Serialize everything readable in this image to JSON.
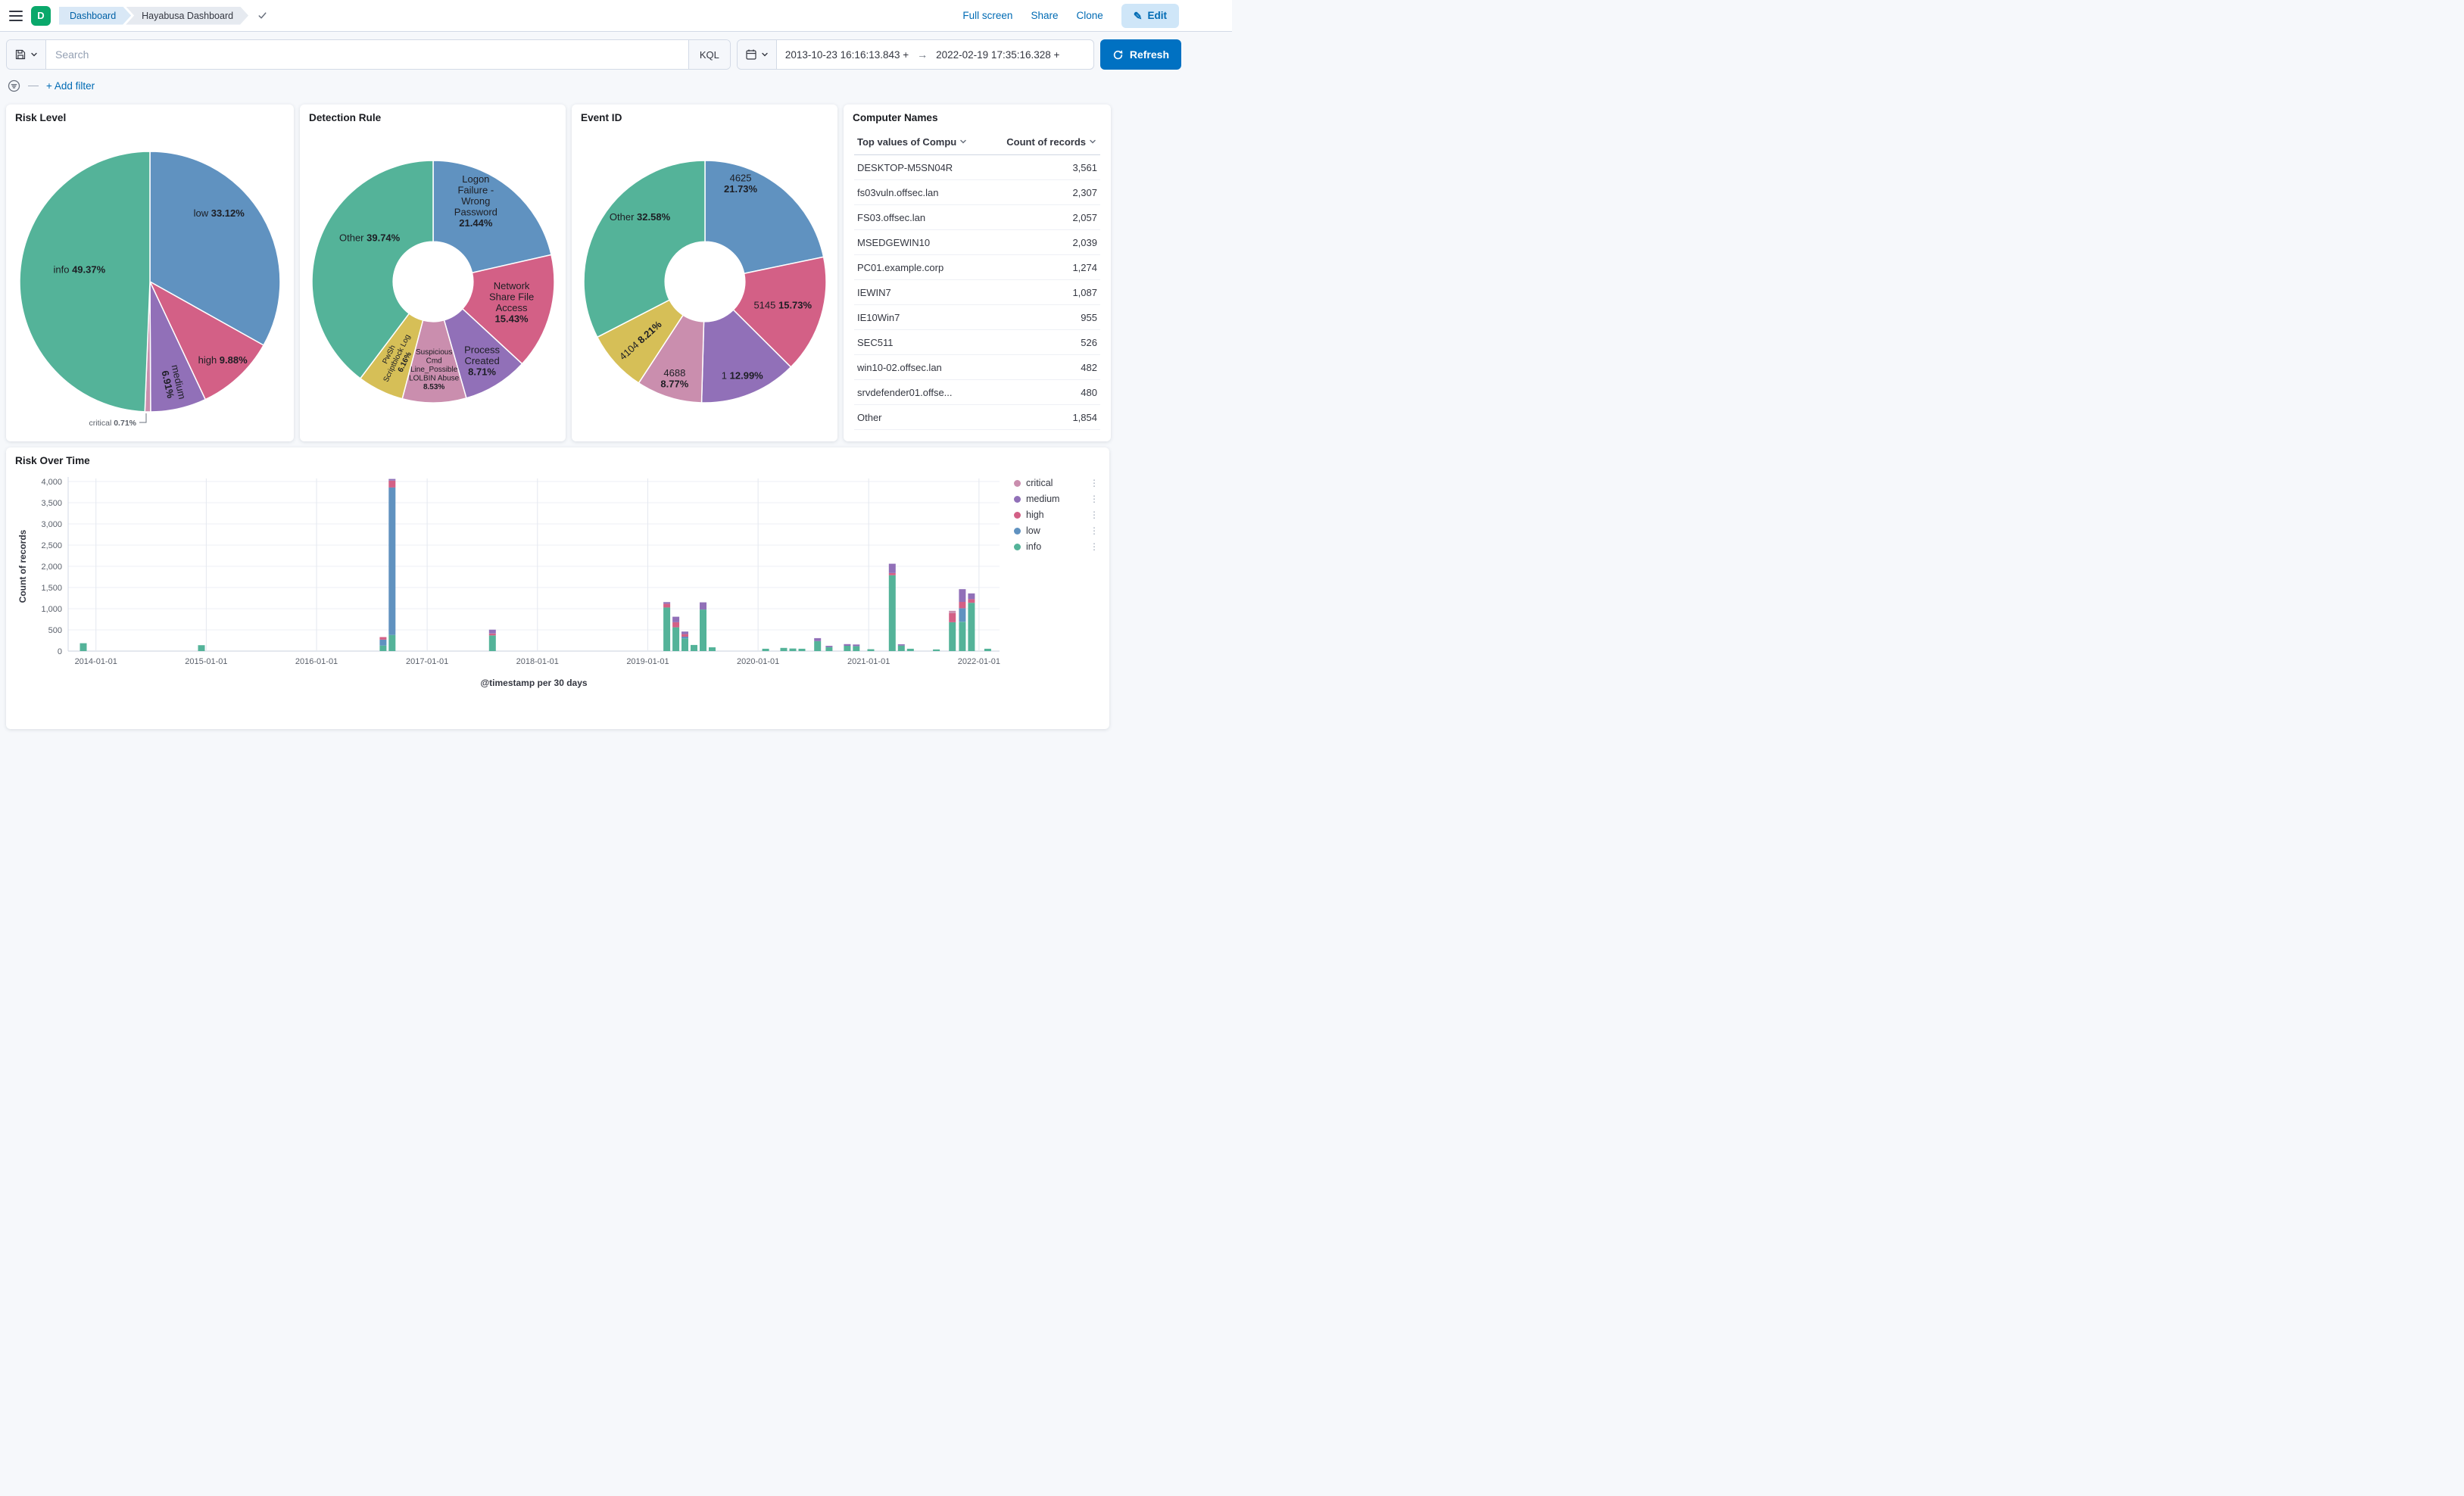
{
  "colors": {
    "info": "#54B399",
    "low": "#6092C0",
    "high": "#D36086",
    "medium": "#9170B8",
    "critical": "#CA8EAE",
    "yellow": "#D6BF57",
    "primary": "#0071C2",
    "link": "#006BB4"
  },
  "header": {
    "logo": "D",
    "breadcrumbs": [
      "Dashboard",
      "Hayabusa Dashboard"
    ],
    "full_screen": "Full screen",
    "share": "Share",
    "clone": "Clone",
    "edit": "Edit"
  },
  "query_bar": {
    "search_placeholder": "Search",
    "kql": "KQL",
    "date_from": "2013-10-23 16:16:13.843 +",
    "date_to": "2022-02-19 17:35:16.328 +",
    "refresh": "Refresh",
    "add_filter": "+ Add filter"
  },
  "chart_data": [
    {
      "type": "pie",
      "title": "Risk Level",
      "donut": false,
      "r": 172,
      "slices": [
        {
          "label": "low",
          "pct": 33.12,
          "color": "low",
          "lr": 0.75,
          "la": 45
        },
        {
          "label": "high",
          "pct": 9.88,
          "color": "high",
          "lr": 0.82
        },
        {
          "label": "medium",
          "pct": 6.91,
          "color": "medium",
          "lr": 0.8,
          "rotate": true,
          "lines": [
            "medium"
          ]
        },
        {
          "label": "critical",
          "pct": 0.71,
          "color": "critical",
          "outside": true
        },
        {
          "label": "info",
          "pct": 49.37,
          "color": "info",
          "lr": 0.55,
          "la": 280
        }
      ]
    },
    {
      "type": "pie",
      "title": "Detection Rule",
      "donut": true,
      "r": 160,
      "slices": [
        {
          "label": "Logon Failure - Wrong Password",
          "pct": 21.44,
          "color": "low",
          "lr": 0.75,
          "la": 28,
          "lines": [
            "Logon",
            "Failure -",
            "Wrong",
            "Password"
          ]
        },
        {
          "label": "Network Share File Access",
          "pct": 15.43,
          "color": "high",
          "lr": 0.67,
          "lines": [
            "Network",
            "Share File",
            "Access"
          ]
        },
        {
          "label": "Process Created",
          "pct": 8.71,
          "color": "medium",
          "lr": 0.77,
          "lines": [
            "Process",
            "Created"
          ]
        },
        {
          "label": "Suspicious CmdLine_Possible LOLBIN Abuse",
          "pct": 8.53,
          "color": "critical",
          "lr": 0.72,
          "small": true,
          "lines": [
            "Suspicious",
            "Cmd",
            "Line_Possible",
            "LOLBIN Abuse"
          ]
        },
        {
          "label": "PwSh Scriptblock Log",
          "pct": 6.16,
          "color": "yellow",
          "lr": 0.7,
          "rotate": true,
          "small": true,
          "lines": [
            "PwSh",
            "Scriptblock Log"
          ]
        },
        {
          "label": "Other",
          "pct": 39.74,
          "color": "info",
          "lr": 0.64,
          "la": 305
        }
      ]
    },
    {
      "type": "pie",
      "title": "Event ID",
      "donut": true,
      "r": 160,
      "slices": [
        {
          "label": "4625",
          "pct": 21.73,
          "color": "low",
          "lr": 0.86,
          "la": 20,
          "lines": [
            "4625"
          ]
        },
        {
          "label": "5145",
          "pct": 15.73,
          "color": "high",
          "lr": 0.67
        },
        {
          "label": "1",
          "pct": 12.99,
          "color": "medium",
          "lr": 0.83
        },
        {
          "label": "4688",
          "pct": 8.77,
          "color": "critical",
          "lr": 0.84,
          "lines": [
            "4688"
          ]
        },
        {
          "label": "4104",
          "pct": 8.21,
          "color": "yellow",
          "lr": 0.72,
          "rotate": true
        },
        {
          "label": "Other",
          "pct": 32.58,
          "color": "info",
          "lr": 0.76,
          "la": 315
        }
      ]
    },
    {
      "type": "table",
      "title": "Computer Names",
      "columns": [
        "Top values of Compu",
        "Count of records"
      ],
      "rows": [
        [
          "DESKTOP-M5SN04R",
          "3,561"
        ],
        [
          "fs03vuln.offsec.lan",
          "2,307"
        ],
        [
          "FS03.offsec.lan",
          "2,057"
        ],
        [
          "MSEDGEWIN10",
          "2,039"
        ],
        [
          "PC01.example.corp",
          "1,274"
        ],
        [
          "IEWIN7",
          "1,087"
        ],
        [
          "IE10Win7",
          "955"
        ],
        [
          "SEC511",
          "526"
        ],
        [
          "win10-02.offsec.lan",
          "482"
        ],
        [
          "srvdefender01.offse...",
          "480"
        ],
        [
          "Other",
          "1,854"
        ]
      ]
    },
    {
      "type": "bar",
      "stacked": true,
      "title": "Risk Over Time",
      "xlabel": "@timestamp per 30 days",
      "ylabel": "Count of records",
      "ylim": [
        0,
        4000
      ],
      "ytick_step": 500,
      "x_range": [
        "2013-10-01",
        "2022-03-10"
      ],
      "xticks": [
        "2014-01-01",
        "2015-01-01",
        "2016-01-01",
        "2017-01-01",
        "2018-01-01",
        "2019-01-01",
        "2020-01-01",
        "2021-01-01",
        "2022-01-01"
      ],
      "legend": [
        "critical",
        "medium",
        "high",
        "low",
        "info"
      ],
      "stack_order": [
        "info",
        "low",
        "high",
        "medium",
        "critical"
      ],
      "bars": [
        {
          "date": "2013-11-20",
          "seg": {
            "info": 185
          }
        },
        {
          "date": "2014-12-16",
          "seg": {
            "info": 140
          }
        },
        {
          "date": "2016-08-08",
          "seg": {
            "info": 130,
            "low": 140,
            "high": 60
          }
        },
        {
          "date": "2016-09-07",
          "seg": {
            "info": 380,
            "low": 3480,
            "high": 160,
            "medium": 40
          }
        },
        {
          "date": "2017-08-05",
          "seg": {
            "info": 370,
            "medium": 90,
            "high": 45
          }
        },
        {
          "date": "2019-03-05",
          "seg": {
            "info": 1030,
            "high": 85,
            "medium": 40
          }
        },
        {
          "date": "2019-04-04",
          "seg": {
            "info": 560,
            "medium": 130,
            "high": 120
          }
        },
        {
          "date": "2019-05-04",
          "seg": {
            "info": 300,
            "low": 40,
            "medium": 60,
            "high": 60
          }
        },
        {
          "date": "2019-06-03",
          "seg": {
            "info": 145
          }
        },
        {
          "date": "2019-07-03",
          "seg": {
            "info": 980,
            "medium": 170
          }
        },
        {
          "date": "2019-08-02",
          "seg": {
            "info": 90
          }
        },
        {
          "date": "2020-01-26",
          "seg": {
            "info": 55
          }
        },
        {
          "date": "2020-03-26",
          "seg": {
            "info": 75
          }
        },
        {
          "date": "2020-04-25",
          "seg": {
            "info": 60
          }
        },
        {
          "date": "2020-05-25",
          "seg": {
            "info": 55
          }
        },
        {
          "date": "2020-07-16",
          "seg": {
            "info": 235,
            "medium": 70
          }
        },
        {
          "date": "2020-08-23",
          "seg": {
            "info": 95,
            "medium": 30
          }
        },
        {
          "date": "2020-10-22",
          "seg": {
            "info": 125,
            "medium": 40
          }
        },
        {
          "date": "2020-11-21",
          "seg": {
            "info": 115,
            "medium": 40
          }
        },
        {
          "date": "2021-01-08",
          "seg": {
            "info": 45
          }
        },
        {
          "date": "2021-03-20",
          "seg": {
            "info": 1790,
            "medium": 220,
            "high": 50
          }
        },
        {
          "date": "2021-04-19",
          "seg": {
            "info": 130,
            "medium": 30
          }
        },
        {
          "date": "2021-05-19",
          "seg": {
            "info": 55
          }
        },
        {
          "date": "2021-08-13",
          "seg": {
            "info": 40
          }
        },
        {
          "date": "2021-10-05",
          "seg": {
            "info": 680,
            "high": 215,
            "critical": 55
          }
        },
        {
          "date": "2021-11-07",
          "seg": {
            "info": 690,
            "low": 320,
            "medium": 300,
            "high": 150
          }
        },
        {
          "date": "2021-12-07",
          "seg": {
            "info": 1140,
            "medium": 135,
            "high": 85
          }
        },
        {
          "date": "2022-01-30",
          "seg": {
            "info": 55
          }
        }
      ]
    }
  ]
}
